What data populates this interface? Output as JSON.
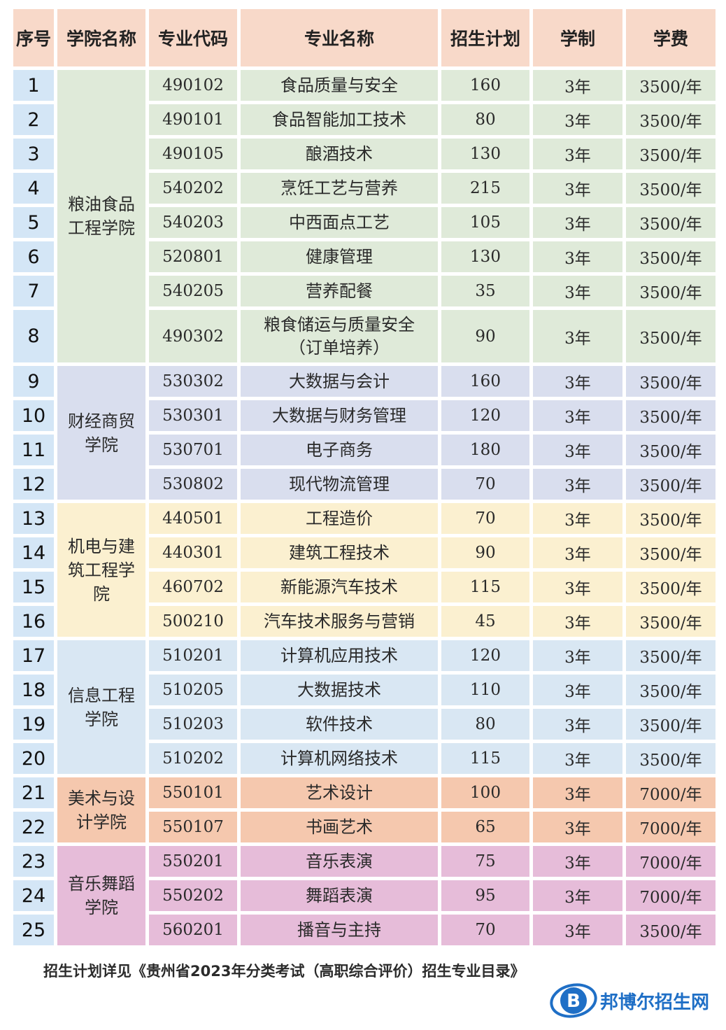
{
  "table": {
    "headers": [
      "序号",
      "学院名称",
      "专业代码",
      "专业名称",
      "招生计划",
      "学制",
      "学费"
    ],
    "schools": [
      {
        "name": "粮油食品工程学院",
        "name_lines": [
          "粮油食品",
          "工程学院"
        ],
        "color": "#dfead9",
        "rows": [
          {
            "no": "1",
            "code": "490102",
            "major": "食品质量与安全",
            "plan": "160",
            "years": "3年",
            "fee": "3500/年"
          },
          {
            "no": "2",
            "code": "490101",
            "major": "食品智能加工技术",
            "plan": "80",
            "years": "3年",
            "fee": "3500/年"
          },
          {
            "no": "3",
            "code": "490105",
            "major": "酿酒技术",
            "plan": "130",
            "years": "3年",
            "fee": "3500/年"
          },
          {
            "no": "4",
            "code": "540202",
            "major": "烹饪工艺与营养",
            "plan": "215",
            "years": "3年",
            "fee": "3500/年"
          },
          {
            "no": "5",
            "code": "540203",
            "major": "中西面点工艺",
            "plan": "105",
            "years": "3年",
            "fee": "3500/年"
          },
          {
            "no": "6",
            "code": "520801",
            "major": "健康管理",
            "plan": "130",
            "years": "3年",
            "fee": "3500/年"
          },
          {
            "no": "7",
            "code": "540205",
            "major": "营养配餐",
            "plan": "35",
            "years": "3年",
            "fee": "3500/年"
          },
          {
            "no": "8",
            "code": "490302",
            "major": "粮食储运与质量安全",
            "major_note": "（订单培养）",
            "plan": "90",
            "years": "3年",
            "fee": "3500/年"
          }
        ]
      },
      {
        "name": "财经商贸学院",
        "name_lines": [
          "财经商贸",
          "学院"
        ],
        "color": "#d9deee",
        "rows": [
          {
            "no": "9",
            "code": "530302",
            "major": "大数据与会计",
            "plan": "160",
            "years": "3年",
            "fee": "3500/年"
          },
          {
            "no": "10",
            "code": "530301",
            "major": "大数据与财务管理",
            "plan": "120",
            "years": "3年",
            "fee": "3500/年"
          },
          {
            "no": "11",
            "code": "530701",
            "major": "电子商务",
            "plan": "180",
            "years": "3年",
            "fee": "3500/年"
          },
          {
            "no": "12",
            "code": "530802",
            "major": "现代物流管理",
            "plan": "70",
            "years": "3年",
            "fee": "3500/年"
          }
        ]
      },
      {
        "name": "机电与建筑工程学院",
        "name_lines": [
          "机电与建",
          "筑工程学",
          "院"
        ],
        "color": "#fbf0d0",
        "rows": [
          {
            "no": "13",
            "code": "440501",
            "major": "工程造价",
            "plan": "70",
            "years": "3年",
            "fee": "3500/年"
          },
          {
            "no": "14",
            "code": "440301",
            "major": "建筑工程技术",
            "plan": "90",
            "years": "3年",
            "fee": "3500/年"
          },
          {
            "no": "15",
            "code": "460702",
            "major": "新能源汽车技术",
            "plan": "115",
            "years": "3年",
            "fee": "3500/年"
          },
          {
            "no": "16",
            "code": "500210",
            "major": "汽车技术服务与营销",
            "plan": "45",
            "years": "3年",
            "fee": "3500/年"
          }
        ]
      },
      {
        "name": "信息工程学院",
        "name_lines": [
          "信息工程",
          "学院"
        ],
        "color": "#d9e7f3",
        "rows": [
          {
            "no": "17",
            "code": "510201",
            "major": "计算机应用技术",
            "plan": "120",
            "years": "3年",
            "fee": "3500/年"
          },
          {
            "no": "18",
            "code": "510205",
            "major": "大数据技术",
            "plan": "110",
            "years": "3年",
            "fee": "3500/年"
          },
          {
            "no": "19",
            "code": "510203",
            "major": "软件技术",
            "plan": "80",
            "years": "3年",
            "fee": "3500/年"
          },
          {
            "no": "20",
            "code": "510202",
            "major": "计算机网络技术",
            "plan": "115",
            "years": "3年",
            "fee": "3500/年"
          }
        ]
      },
      {
        "name": "美术与设计学院",
        "name_lines": [
          "美术与设",
          "计学院"
        ],
        "color": "#f5c8ae",
        "rows": [
          {
            "no": "21",
            "code": "550101",
            "major": "艺术设计",
            "plan": "100",
            "years": "3年",
            "fee": "7000/年"
          },
          {
            "no": "22",
            "code": "550107",
            "major": "书画艺术",
            "plan": "65",
            "years": "3年",
            "fee": "7000/年"
          }
        ]
      },
      {
        "name": "音乐舞蹈学院",
        "name_lines": [
          "音乐舞蹈",
          "学院"
        ],
        "color": "#e6bcd9",
        "rows": [
          {
            "no": "23",
            "code": "550201",
            "major": "音乐表演",
            "plan": "75",
            "years": "3年",
            "fee": "7000/年"
          },
          {
            "no": "24",
            "code": "550202",
            "major": "舞蹈表演",
            "plan": "95",
            "years": "3年",
            "fee": "7000/年"
          },
          {
            "no": "25",
            "code": "560201",
            "major": "播音与主持",
            "plan": "70",
            "years": "3年",
            "fee": "3500/年"
          }
        ]
      }
    ]
  },
  "footnote": "招生计划详见《贵州省2023年分类考试（高职综合评价）招生专业目录》",
  "watermark": {
    "text": "邦博尔招生网",
    "letter": "B",
    "icon": "bangboer-logo-icon",
    "color": "#1f6fc6"
  }
}
